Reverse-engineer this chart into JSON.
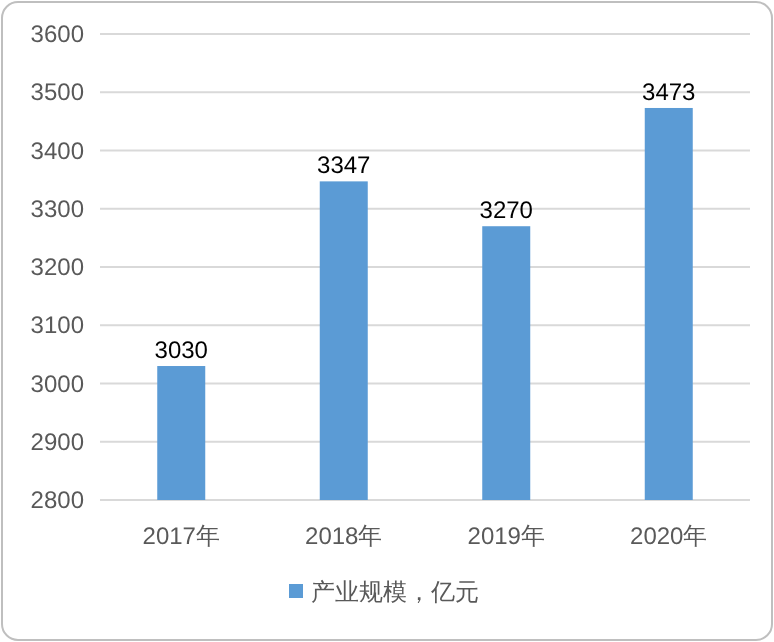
{
  "chart_data": {
    "type": "bar",
    "categories": [
      "2017年",
      "2018年",
      "2019年",
      "2020年"
    ],
    "series": [
      {
        "name": "产业规模，亿元",
        "color": "#5b9bd5",
        "values": [
          3030,
          3347,
          3270,
          3473
        ]
      }
    ],
    "ylim": [
      2800,
      3600
    ],
    "yticks": [
      2800,
      2900,
      3000,
      3100,
      3200,
      3300,
      3400,
      3500,
      3600
    ],
    "grid": "y",
    "data_labels": true,
    "legend": "bottom"
  }
}
